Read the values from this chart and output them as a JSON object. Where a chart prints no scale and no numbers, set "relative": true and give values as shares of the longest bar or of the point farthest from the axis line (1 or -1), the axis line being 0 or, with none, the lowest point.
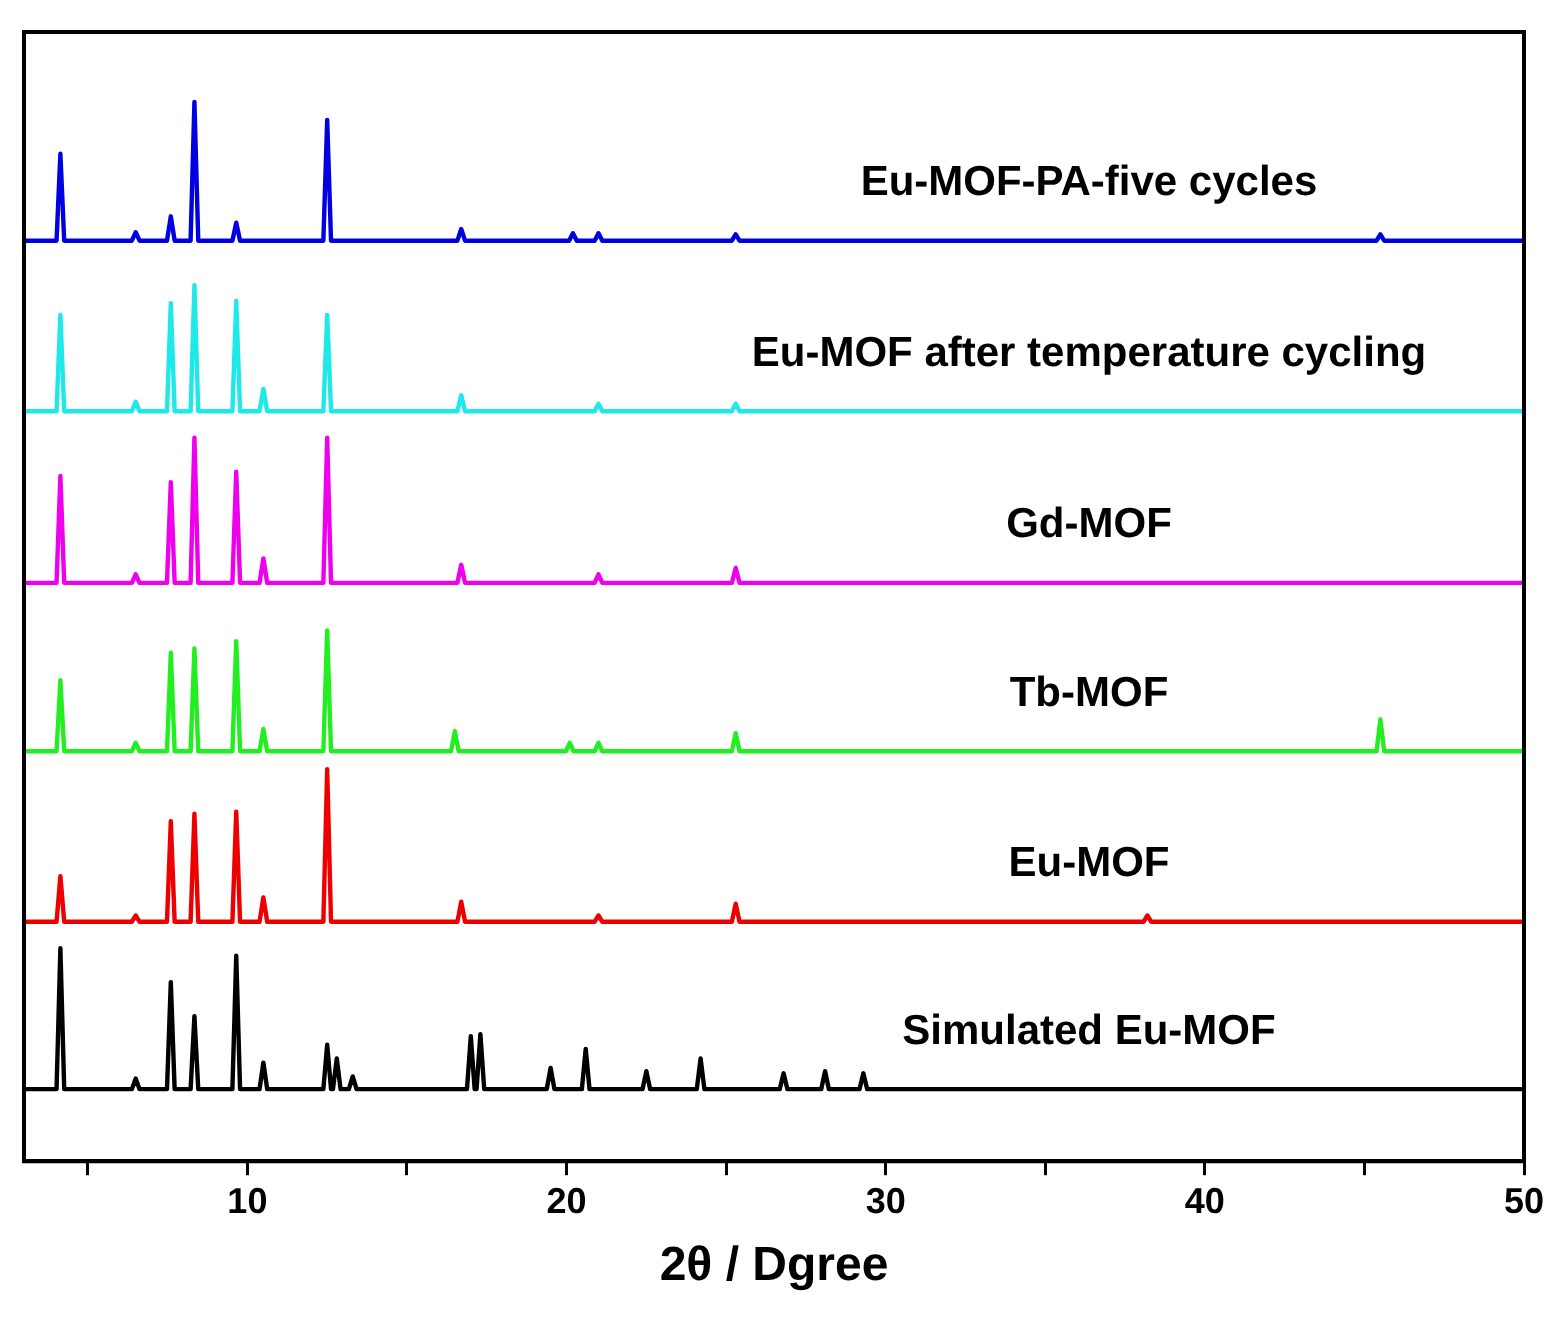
{
  "chart_data": {
    "type": "line",
    "relative": true,
    "xlabel": "2θ / Dgree",
    "xlim": [
      3,
      50
    ],
    "xticks": [
      {
        "value": 5,
        "label": null
      },
      10,
      {
        "value": 15,
        "label": null
      },
      20,
      {
        "value": 25,
        "label": null
      },
      30,
      {
        "value": 35,
        "label": null
      },
      40,
      {
        "value": 45,
        "label": null
      },
      50
    ],
    "legend": false,
    "grid": false,
    "series": [
      {
        "name": "Eu-MOF-PA-five cycles",
        "color": "#0000e0",
        "x": [
          3,
          4.02,
          4.14,
          4.26,
          6.38,
          6.5,
          6.62,
          7.48,
          7.6,
          7.72,
          8.22,
          8.34,
          8.46,
          9.53,
          9.65,
          9.77,
          12.38,
          12.5,
          12.62,
          16.58,
          16.7,
          16.82,
          20.08,
          20.2,
          20.32,
          20.88,
          21,
          21.12,
          25.18,
          25.3,
          25.42,
          45.38,
          45.5,
          45.62,
          50
        ],
        "values": [
          0.869,
          0.869,
          0.951,
          0.869,
          0.869,
          0.877,
          0.869,
          0.869,
          0.892,
          0.869,
          0.869,
          1,
          0.869,
          0.869,
          0.886,
          0.869,
          0.869,
          0.983,
          0.869,
          0.869,
          0.88,
          0.869,
          0.869,
          0.876,
          0.869,
          0.869,
          0.876,
          0.869,
          0.869,
          0.875,
          0.869,
          0.869,
          0.875,
          0.869,
          0.869
        ]
      },
      {
        "name": "Eu-MOF after temperature cycling",
        "color": "#1ee8e8",
        "x": [
          3,
          4.02,
          4.14,
          4.26,
          6.38,
          6.5,
          6.62,
          7.48,
          7.6,
          7.72,
          8.22,
          8.34,
          8.46,
          9.53,
          9.65,
          9.77,
          10.38,
          10.5,
          10.62,
          12.38,
          12.5,
          12.62,
          16.58,
          16.7,
          16.82,
          20.88,
          21,
          21.12,
          25.18,
          25.3,
          25.42,
          50
        ],
        "values": [
          0.708,
          0.708,
          0.799,
          0.708,
          0.708,
          0.717,
          0.708,
          0.708,
          0.81,
          0.708,
          0.708,
          0.827,
          0.708,
          0.708,
          0.812,
          0.708,
          0.708,
          0.729,
          0.708,
          0.708,
          0.799,
          0.708,
          0.708,
          0.723,
          0.708,
          0.708,
          0.715,
          0.708,
          0.708,
          0.715,
          0.708,
          0.708
        ]
      },
      {
        "name": "Gd-MOF",
        "color": "#ee00ee",
        "x": [
          3,
          4.02,
          4.14,
          4.26,
          6.38,
          6.5,
          6.62,
          7.48,
          7.6,
          7.72,
          8.22,
          8.34,
          8.46,
          9.53,
          9.65,
          9.77,
          10.38,
          10.5,
          10.62,
          12.38,
          12.5,
          12.62,
          16.58,
          16.7,
          16.82,
          20.88,
          21,
          21.12,
          25.18,
          25.3,
          25.42,
          50
        ],
        "values": [
          0.546,
          0.546,
          0.647,
          0.546,
          0.546,
          0.554,
          0.546,
          0.546,
          0.641,
          0.546,
          0.546,
          0.683,
          0.546,
          0.546,
          0.651,
          0.546,
          0.546,
          0.569,
          0.546,
          0.546,
          0.683,
          0.546,
          0.546,
          0.563,
          0.546,
          0.546,
          0.554,
          0.546,
          0.546,
          0.56,
          0.546,
          0.546
        ]
      },
      {
        "name": "Tb-MOF",
        "color": "#22ee22",
        "x": [
          3,
          4.02,
          4.14,
          4.26,
          6.38,
          6.5,
          6.62,
          7.48,
          7.6,
          7.72,
          8.22,
          8.34,
          8.46,
          9.53,
          9.65,
          9.77,
          10.38,
          10.5,
          10.62,
          12.38,
          12.5,
          12.62,
          16.38,
          16.5,
          16.62,
          19.98,
          20.1,
          20.22,
          20.88,
          21,
          21.12,
          25.18,
          25.3,
          25.42,
          45.38,
          45.5,
          45.62,
          50
        ],
        "values": [
          0.387,
          0.387,
          0.454,
          0.387,
          0.387,
          0.395,
          0.387,
          0.387,
          0.48,
          0.387,
          0.387,
          0.484,
          0.387,
          0.387,
          0.491,
          0.387,
          0.387,
          0.408,
          0.387,
          0.387,
          0.501,
          0.387,
          0.387,
          0.406,
          0.387,
          0.387,
          0.395,
          0.387,
          0.387,
          0.395,
          0.387,
          0.387,
          0.404,
          0.387,
          0.387,
          0.417,
          0.387,
          0.387
        ]
      },
      {
        "name": "Eu-MOF",
        "color": "#ee0000",
        "x": [
          3,
          4.02,
          4.14,
          4.26,
          6.38,
          6.5,
          6.62,
          7.48,
          7.6,
          7.72,
          8.22,
          8.34,
          8.46,
          9.53,
          9.65,
          9.77,
          10.38,
          10.5,
          10.62,
          12.38,
          12.5,
          12.62,
          16.58,
          16.7,
          16.82,
          20.88,
          21,
          21.12,
          25.18,
          25.3,
          25.42,
          38.08,
          38.2,
          38.32,
          50
        ],
        "values": [
          0.226,
          0.226,
          0.269,
          0.226,
          0.226,
          0.232,
          0.226,
          0.226,
          0.321,
          0.226,
          0.226,
          0.328,
          0.226,
          0.226,
          0.33,
          0.226,
          0.226,
          0.249,
          0.226,
          0.226,
          0.37,
          0.226,
          0.226,
          0.245,
          0.226,
          0.226,
          0.232,
          0.226,
          0.226,
          0.243,
          0.226,
          0.226,
          0.232,
          0.226,
          0.226
        ]
      },
      {
        "name": "Simulated Eu-MOF",
        "color": "#000000",
        "x": [
          3,
          4.02,
          4.14,
          4.26,
          6.38,
          6.5,
          6.62,
          7.48,
          7.6,
          7.72,
          8.22,
          8.34,
          8.46,
          9.53,
          9.65,
          9.77,
          10.38,
          10.5,
          10.62,
          12.38,
          12.5,
          12.62,
          12.68,
          12.8,
          12.92,
          13.18,
          13.3,
          13.42,
          16.88,
          17,
          17.12,
          17.18,
          17.3,
          17.42,
          19.38,
          19.5,
          19.62,
          20.48,
          20.6,
          20.72,
          22.38,
          22.5,
          22.62,
          24.08,
          24.2,
          24.32,
          26.68,
          26.8,
          26.92,
          27.98,
          28.1,
          28.22,
          29.18,
          29.3,
          29.42,
          50
        ],
        "values": [
          0.068,
          0.068,
          0.201,
          0.068,
          0.068,
          0.078,
          0.068,
          0.068,
          0.169,
          0.068,
          0.068,
          0.137,
          0.068,
          0.068,
          0.194,
          0.068,
          0.068,
          0.093,
          0.068,
          0.068,
          0.11,
          0.068,
          0.068,
          0.097,
          0.068,
          0.068,
          0.08,
          0.068,
          0.068,
          0.118,
          0.068,
          0.068,
          0.12,
          0.068,
          0.068,
          0.088,
          0.068,
          0.068,
          0.106,
          0.068,
          0.068,
          0.085,
          0.068,
          0.068,
          0.097,
          0.068,
          0.068,
          0.083,
          0.068,
          0.068,
          0.085,
          0.068,
          0.068,
          0.083,
          0.068,
          0.068
        ]
      }
    ]
  }
}
